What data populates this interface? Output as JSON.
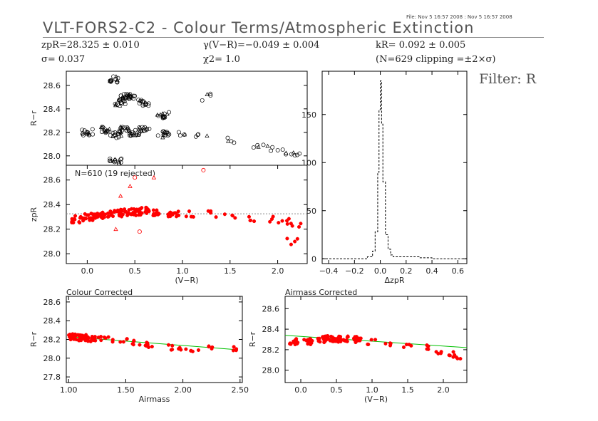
{
  "header": {
    "file_line": "File: Nov  5 16:57 2008 : Nov  5 16:57 2008",
    "title": "VLT-FORS2-C2 - Colour Terms/Atmospheric Extinction",
    "stat_zp": "zpR=28.325 ± 0.010",
    "stat_sigma": "σ= 0.037",
    "stat_gamma": "γ(V−R)=−0.049 ± 0.004",
    "stat_chi": "χ2=  1.0",
    "stat_k": "kR= 0.092 ± 0.005",
    "stat_n": "(N=629 clipping =±2×σ)",
    "filter": "Filter: R"
  },
  "chart_data": [
    {
      "id": "top",
      "type": "scatter",
      "ylabel": "R−r",
      "ylim": [
        27.92,
        28.72
      ],
      "xlim": [
        -0.22,
        2.31
      ],
      "yticks": [
        28.0,
        28.2,
        28.4,
        28.6
      ],
      "series": [
        {
          "marker": "circle/triangle open",
          "color": "#000000",
          "points": [
            [
              0.0,
              28.2
            ],
            [
              0.2,
              28.22
            ],
            [
              0.3,
              28.18
            ],
            [
              0.4,
              28.22
            ],
            [
              0.5,
              28.2
            ],
            [
              0.6,
              28.22
            ],
            [
              0.8,
              28.18
            ],
            [
              1.0,
              28.2
            ],
            [
              1.2,
              28.17
            ],
            [
              1.5,
              28.13
            ],
            [
              1.8,
              28.09
            ],
            [
              1.95,
              28.07
            ],
            [
              2.1,
              28.04
            ],
            [
              2.2,
              28.02
            ],
            [
              0.4,
              28.5
            ],
            [
              0.35,
              28.45
            ],
            [
              0.8,
              28.35
            ],
            [
              1.25,
              28.5
            ],
            [
              0.3,
              28.65
            ],
            [
              0.45,
              28.5
            ],
            [
              0.3,
              27.96
            ],
            [
              0.6,
              28.45
            ]
          ]
        }
      ]
    },
    {
      "id": "mid",
      "type": "scatter",
      "ylabel": "zpR",
      "xlabel": "(V−R)",
      "annotation": "N=610 (19 rejected)",
      "ylim": [
        27.92,
        28.72
      ],
      "xlim": [
        -0.22,
        2.31
      ],
      "yticks": [
        28.0,
        28.2,
        28.4,
        28.6
      ],
      "xticks": [
        0.0,
        0.5,
        1.0,
        1.5,
        2.0
      ],
      "xticklabels": [
        "0.0",
        "0.5",
        "1.0",
        "1.5",
        "2.0"
      ],
      "reference_line": 28.325,
      "series": [
        {
          "marker": "filled",
          "color": "#ff0000",
          "points": [
            [
              -0.1,
              28.28
            ],
            [
              0.0,
              28.3
            ],
            [
              0.1,
              28.31
            ],
            [
              0.2,
              28.32
            ],
            [
              0.3,
              28.33
            ],
            [
              0.4,
              28.34
            ],
            [
              0.5,
              28.34
            ],
            [
              0.6,
              28.35
            ],
            [
              0.7,
              28.33
            ],
            [
              0.9,
              28.33
            ],
            [
              1.1,
              28.32
            ],
            [
              1.3,
              28.32
            ],
            [
              1.5,
              28.3
            ],
            [
              1.75,
              28.28
            ],
            [
              1.95,
              28.28
            ],
            [
              2.1,
              28.26
            ],
            [
              2.2,
              28.24
            ],
            [
              2.15,
              28.1
            ]
          ]
        }
      ],
      "rejected": [
        [
          0.35,
          28.47
        ],
        [
          0.5,
          28.62
        ],
        [
          0.7,
          28.62
        ],
        [
          1.22,
          28.68
        ],
        [
          0.3,
          28.2
        ],
        [
          0.55,
          28.18
        ],
        [
          0.45,
          28.55
        ]
      ]
    },
    {
      "id": "hist",
      "type": "histogram",
      "xlabel": "ΔzpR",
      "xlim": [
        -0.45,
        0.67
      ],
      "ylim": [
        -5,
        195
      ],
      "xticks": [
        -0.4,
        -0.2,
        0.0,
        0.2,
        0.4,
        0.6
      ],
      "xticklabels": [
        "−0.4",
        "−0.2",
        "0.0",
        "0.2",
        "0.4",
        "0.6"
      ],
      "yticks": [
        0,
        50,
        100,
        150
      ],
      "bins": [
        [
          -0.45,
          0
        ],
        [
          -0.1,
          2
        ],
        [
          -0.06,
          8
        ],
        [
          -0.04,
          28
        ],
        [
          -0.02,
          90
        ],
        [
          -0.01,
          155
        ],
        [
          0.0,
          185
        ],
        [
          0.01,
          140
        ],
        [
          0.02,
          80
        ],
        [
          0.04,
          25
        ],
        [
          0.06,
          10
        ],
        [
          0.08,
          4
        ],
        [
          0.1,
          2
        ],
        [
          0.3,
          1
        ],
        [
          0.4,
          0
        ],
        [
          0.67,
          0
        ]
      ]
    },
    {
      "id": "colour",
      "type": "scatter",
      "title": "Colour Corrected",
      "ylabel": "R−r",
      "xlabel": "Airmass",
      "xlim": [
        0.98,
        2.52
      ],
      "ylim": [
        27.74,
        28.66
      ],
      "xticks": [
        1.0,
        1.5,
        2.0,
        2.5
      ],
      "xticklabels": [
        "1.00",
        "1.50",
        "2.00",
        "2.50"
      ],
      "yticks": [
        27.8,
        28.0,
        28.2,
        28.4,
        28.6
      ],
      "fit_line": [
        [
          1.0,
          28.23
        ],
        [
          2.48,
          28.09
        ]
      ],
      "series": [
        {
          "marker": "filled",
          "color": "#ff0000",
          "points": [
            [
              1.03,
              28.23
            ],
            [
              1.08,
              28.22
            ],
            [
              1.12,
              28.22
            ],
            [
              1.2,
              28.21
            ],
            [
              1.3,
              28.21
            ],
            [
              1.35,
              28.2
            ],
            [
              1.48,
              28.19
            ],
            [
              1.55,
              28.17
            ],
            [
              1.65,
              28.15
            ],
            [
              1.7,
              28.14
            ],
            [
              1.9,
              28.12
            ],
            [
              2.0,
              28.11
            ],
            [
              2.1,
              28.1
            ],
            [
              2.25,
              28.1
            ],
            [
              2.43,
              28.1
            ]
          ]
        }
      ]
    },
    {
      "id": "airmass",
      "type": "scatter",
      "title": "Airmass Corrected",
      "ylabel": "R−r",
      "xlabel": "(V−R)",
      "xlim": [
        -0.22,
        2.33
      ],
      "ylim": [
        27.88,
        28.72
      ],
      "xticks": [
        0.0,
        0.5,
        1.0,
        1.5,
        2.0
      ],
      "xticklabels": [
        "0.0",
        "0.5",
        "1.0",
        "1.5",
        "2.0"
      ],
      "yticks": [
        28.0,
        28.2,
        28.4,
        28.6
      ],
      "fit_line": [
        [
          -0.22,
          28.34
        ],
        [
          2.33,
          28.22
        ]
      ],
      "series": [
        {
          "marker": "filled",
          "color": "#ff0000",
          "points": [
            [
              -0.1,
              28.28
            ],
            [
              0.1,
              28.28
            ],
            [
              0.3,
              28.3
            ],
            [
              0.4,
              28.31
            ],
            [
              0.5,
              28.3
            ],
            [
              0.6,
              28.31
            ],
            [
              0.8,
              28.3
            ],
            [
              1.0,
              28.28
            ],
            [
              1.2,
              28.27
            ],
            [
              1.5,
              28.25
            ],
            [
              1.8,
              28.22
            ],
            [
              1.95,
              28.18
            ],
            [
              2.1,
              28.15
            ],
            [
              2.2,
              28.12
            ]
          ]
        }
      ]
    }
  ],
  "colors": {
    "accent_red": "#ff0000",
    "fit_green": "#00c000",
    "ref_gray": "#888888"
  }
}
